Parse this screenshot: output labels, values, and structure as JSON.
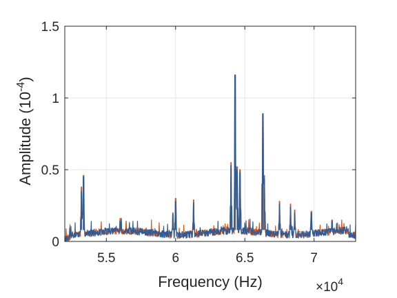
{
  "chart_data": {
    "type": "line",
    "xlabel": "Frequency (Hz)",
    "ylabel_main": "Amplitude (10",
    "ylabel_exp": "-4",
    "ylabel_close": ")",
    "x_multiplier_prefix": "×10",
    "x_multiplier_exp": "4",
    "xlim": [
      52000,
      73000
    ],
    "ylim": [
      0,
      1.5
    ],
    "x_ticks": [
      55000,
      60000,
      65000,
      70000
    ],
    "x_tick_labels": [
      "5.5",
      "6",
      "6.5",
      "7"
    ],
    "y_ticks": [
      0,
      0.5,
      1,
      1.5
    ],
    "y_tick_labels": [
      "0",
      "0.5",
      "1",
      "1.5"
    ],
    "grid": true,
    "colors": {
      "series_front": "#2f5c96",
      "series_back": "#d95319",
      "axis": "#262626",
      "grid": "#e6e6e6"
    },
    "series": [
      {
        "color": "#d95319",
        "peaks": [
          [
            53200,
            0.38
          ],
          [
            53350,
            0.46
          ],
          [
            56000,
            0.16
          ],
          [
            59800,
            0.2
          ],
          [
            60000,
            0.3
          ],
          [
            61300,
            0.29
          ],
          [
            64000,
            0.55
          ],
          [
            64300,
            1.16
          ],
          [
            64450,
            0.52
          ],
          [
            64650,
            0.5
          ],
          [
            66300,
            0.89
          ],
          [
            66400,
            0.46
          ],
          [
            67500,
            0.28
          ],
          [
            68300,
            0.26
          ],
          [
            68600,
            0.22
          ],
          [
            69800,
            0.21
          ],
          [
            71300,
            0.15
          ]
        ]
      },
      {
        "color": "#2f5c96",
        "peaks": [
          [
            53200,
            0.35
          ],
          [
            53350,
            0.45
          ],
          [
            56000,
            0.14
          ],
          [
            59800,
            0.19
          ],
          [
            60000,
            0.28
          ],
          [
            61300,
            0.27
          ],
          [
            64000,
            0.53
          ],
          [
            64300,
            1.16
          ],
          [
            64450,
            0.5
          ],
          [
            64650,
            0.48
          ],
          [
            66300,
            0.89
          ],
          [
            66400,
            0.44
          ],
          [
            67500,
            0.26
          ],
          [
            68300,
            0.24
          ],
          [
            68600,
            0.2
          ],
          [
            69800,
            0.2
          ],
          [
            71300,
            0.14
          ]
        ]
      }
    ]
  }
}
